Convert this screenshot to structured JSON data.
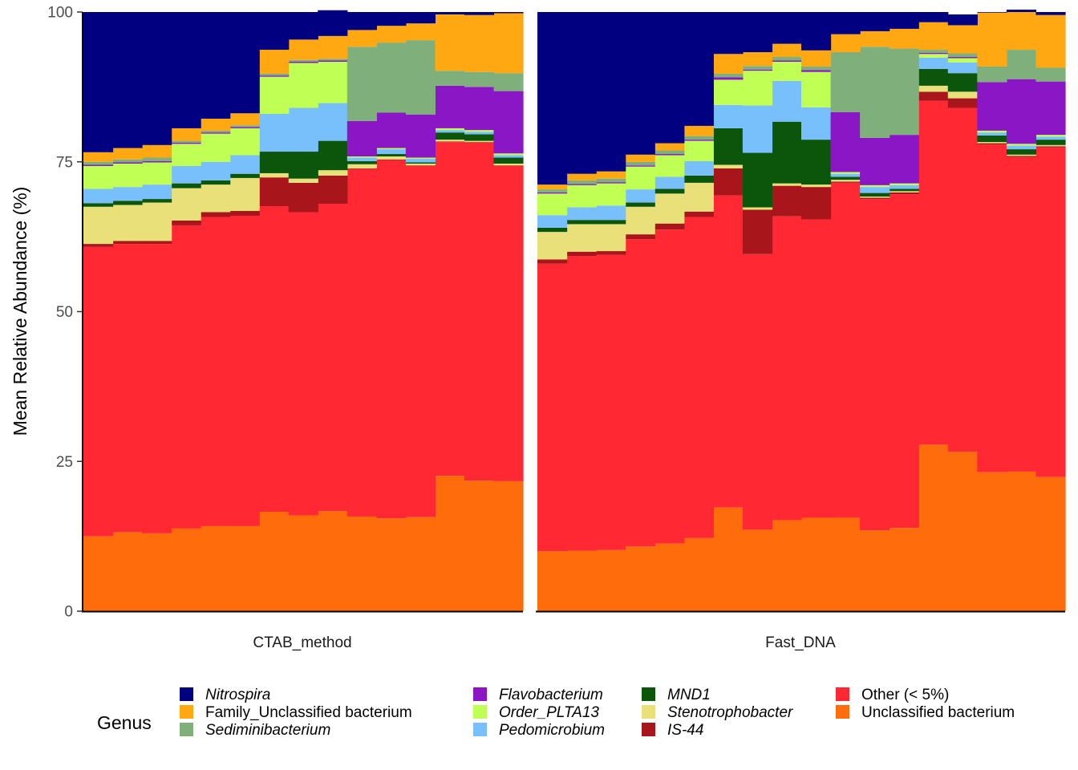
{
  "chart_data": {
    "type": "area",
    "subtype": "stacked-step-area",
    "ylabel": "Mean Relative Abundance (%)",
    "xlabel": "",
    "ylim": [
      0,
      100
    ],
    "yticks": [
      0,
      25,
      50,
      75,
      100
    ],
    "grid": false,
    "legend": {
      "title": "Genus",
      "placement": "bottom",
      "columns": [
        [
          "Nitrospira",
          "Family_Unclassified bacterium",
          "Sediminibacterium"
        ],
        [
          "Flavobacterium",
          "Order_PLTA13",
          "Pedomicrobium"
        ],
        [
          "MND1",
          "Stenotrophobacter",
          "IS-44"
        ],
        [
          "Other (< 5%)",
          "Unclassified bacterium"
        ]
      ]
    },
    "stack_order": [
      "Unclassified bacterium",
      "Other (< 5%)",
      "IS-44",
      "Stenotrophobacter",
      "MND1",
      "Pedomicrobium",
      "Order_PLTA13",
      "Flavobacterium",
      "Sediminibacterium",
      "Family_Unclassified bacterium",
      "Nitrospira"
    ],
    "series_style": {
      "Nitrospira": {
        "color": "#000080",
        "italic": true
      },
      "Family_Unclassified bacterium": {
        "color": "#FFA812",
        "italic": false
      },
      "Sediminibacterium": {
        "color": "#7FAF7A",
        "italic": true
      },
      "Flavobacterium": {
        "color": "#8A16C6",
        "italic": true
      },
      "Order_PLTA13": {
        "color": "#C0FF54",
        "italic": true
      },
      "Pedomicrobium": {
        "color": "#78C0FB",
        "italic": true
      },
      "MND1": {
        "color": "#0C560C",
        "italic": true
      },
      "Stenotrophobacter": {
        "color": "#EAE07A",
        "italic": true
      },
      "IS-44": {
        "color": "#A8161B",
        "italic": true
      },
      "Other (< 5%)": {
        "color": "#FF2833",
        "italic": false
      },
      "Unclassified bacterium": {
        "color": "#FF6C0C",
        "italic": false
      }
    },
    "panels": [
      {
        "name": "CTAB_method",
        "samples": 15,
        "series": [
          {
            "name": "Unclassified bacterium",
            "values": [
              12.5,
              13.2,
              13.0,
              13.8,
              14.2,
              14.2,
              16.6,
              16.0,
              16.7,
              15.8,
              15.5,
              15.7,
              22.6,
              21.8,
              21.7
            ]
          },
          {
            "name": "Other (< 5%)",
            "values": [
              48.3,
              48.1,
              48.3,
              50.6,
              51.6,
              51.8,
              51.0,
              50.6,
              51.3,
              58.0,
              59.8,
              58.6,
              55.7,
              56.4,
              52.6
            ]
          },
          {
            "name": "IS-44",
            "values": [
              0.5,
              0.5,
              0.5,
              0.8,
              0.8,
              0.8,
              4.8,
              4.9,
              4.7,
              0.1,
              0.1,
              0.1,
              0.1,
              0.1,
              0.1
            ]
          },
          {
            "name": "Stenotrophobacter",
            "values": [
              6.2,
              6.0,
              6.4,
              5.4,
              4.6,
              5.5,
              0.7,
              0.7,
              0.9,
              0.7,
              0.5,
              0.3,
              0.3,
              0.2,
              0.3
            ]
          },
          {
            "name": "MND1",
            "values": [
              0.6,
              0.7,
              0.6,
              0.8,
              0.7,
              0.7,
              3.6,
              4.5,
              4.9,
              0.5,
              0.4,
              0.2,
              1.2,
              1.1,
              1.0
            ]
          },
          {
            "name": "Pedomicrobium",
            "values": [
              2.4,
              2.3,
              2.4,
              2.9,
              3.1,
              3.1,
              6.3,
              7.3,
              6.3,
              0.6,
              0.8,
              0.6,
              0.4,
              0.4,
              0.4
            ]
          },
          {
            "name": "Order_PLTA13",
            "values": [
              3.8,
              3.9,
              3.7,
              3.7,
              4.7,
              4.5,
              6.2,
              7.5,
              6.9,
              0.2,
              0.2,
              0.2,
              0.3,
              0.3,
              0.3
            ]
          },
          {
            "name": "Flavobacterium",
            "values": [
              0.2,
              0.2,
              0.2,
              0.2,
              0.2,
              0.2,
              0.2,
              0.2,
              0.2,
              5.9,
              5.9,
              7.2,
              7.1,
              7.2,
              10.4
            ]
          },
          {
            "name": "Sediminibacterium",
            "values": [
              0.5,
              0.5,
              0.6,
              0.3,
              0.3,
              0.3,
              0.3,
              0.3,
              0.3,
              12.4,
              11.7,
              12.4,
              2.5,
              2.5,
              3.0
            ]
          },
          {
            "name": "Family_Unclassified bacterium",
            "values": [
              1.6,
              1.9,
              2.1,
              2.1,
              2.0,
              2.0,
              4.0,
              3.4,
              3.8,
              2.8,
              2.8,
              2.8,
              9.4,
              9.5,
              10.0
            ]
          },
          {
            "name": "Nitrospira",
            "values": [
              23.4,
              22.7,
              22.2,
              19.4,
              17.8,
              16.9,
              6.3,
              4.6,
              4.3,
              3.0,
              2.3,
              1.9,
              0.4,
              0.5,
              0.2
            ]
          }
        ]
      },
      {
        "name": "Fast_DNA",
        "samples": 18,
        "series": [
          {
            "name": "Unclassified bacterium",
            "values": [
              10.0,
              10.1,
              10.2,
              10.8,
              11.3,
              12.2,
              17.3,
              13.6,
              15.2,
              15.6,
              15.6,
              13.5,
              13.9,
              27.8,
              26.6,
              23.2,
              23.3,
              22.4
            ]
          },
          {
            "name": "Other (< 5%)",
            "values": [
              48.0,
              49.2,
              49.3,
              51.3,
              52.4,
              53.6,
              52.1,
              46.0,
              50.7,
              49.8,
              55.9,
              55.3,
              55.7,
              57.4,
              57.4,
              54.7,
              52.5,
              55.0
            ]
          },
          {
            "name": "IS-44",
            "values": [
              0.7,
              0.7,
              0.6,
              0.8,
              1.0,
              0.9,
              4.5,
              7.4,
              5.1,
              5.4,
              0.2,
              0.2,
              0.3,
              1.5,
              1.6,
              0.2,
              0.2,
              0.2
            ]
          },
          {
            "name": "Stenotrophobacter",
            "values": [
              4.6,
              4.6,
              4.5,
              4.6,
              5.0,
              4.8,
              0.6,
              0.4,
              0.4,
              0.4,
              0.3,
              0.2,
              0.2,
              1.0,
              1.1,
              0.2,
              0.2,
              0.2
            ]
          },
          {
            "name": "MND1",
            "values": [
              0.7,
              0.7,
              0.7,
              0.7,
              0.8,
              1.2,
              6.1,
              9.1,
              10.3,
              7.5,
              0.5,
              0.6,
              0.4,
              2.8,
              3.1,
              1.1,
              0.9,
              0.9
            ]
          },
          {
            "name": "Pedomicrobium",
            "values": [
              2.1,
              2.1,
              2.4,
              2.2,
              2.0,
              2.4,
              3.9,
              7.9,
              6.8,
              5.4,
              0.5,
              1.0,
              0.6,
              1.9,
              1.8,
              0.5,
              0.6,
              0.5
            ]
          },
          {
            "name": "Order_PLTA13",
            "values": [
              3.6,
              3.7,
              3.7,
              3.8,
              3.6,
              3.4,
              4.2,
              5.8,
              3.2,
              5.9,
              0.3,
              0.3,
              0.3,
              0.6,
              0.7,
              0.3,
              0.3,
              0.3
            ]
          },
          {
            "name": "Flavobacterium",
            "values": [
              0.2,
              0.2,
              0.2,
              0.2,
              0.2,
              0.2,
              0.4,
              0.2,
              0.2,
              0.3,
              10.0,
              7.9,
              8.1,
              0.2,
              0.2,
              8.1,
              10.8,
              8.9
            ]
          },
          {
            "name": "Sediminibacterium",
            "values": [
              0.5,
              0.6,
              0.6,
              0.6,
              0.6,
              0.6,
              0.6,
              0.6,
              0.6,
              0.6,
              10.0,
              15.2,
              14.4,
              0.5,
              0.6,
              2.6,
              4.9,
              2.3
            ]
          },
          {
            "name": "Family_Unclassified bacterium",
            "values": [
              0.8,
              1.1,
              1.2,
              1.2,
              1.2,
              1.7,
              3.3,
              2.3,
              2.2,
              2.7,
              3.0,
              2.6,
              3.3,
              4.6,
              4.7,
              9.0,
              6.3,
              8.8
            ]
          },
          {
            "name": "Nitrospira",
            "values": [
              28.8,
              27.0,
              26.6,
              23.8,
              21.9,
              19.0,
              7.0,
              6.7,
              5.3,
              6.4,
              3.7,
              3.2,
              2.8,
              1.7,
              1.8,
              0.1,
              0.4,
              0.5
            ]
          }
        ]
      }
    ]
  }
}
